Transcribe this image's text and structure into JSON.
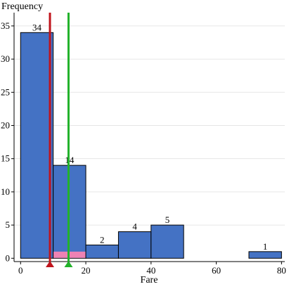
{
  "chart_data": {
    "type": "bar",
    "subtype": "histogram",
    "xlabel": "Fare",
    "ylabel": "Frequency",
    "xlim": [
      -2,
      81
    ],
    "ylim": [
      -0.5,
      37
    ],
    "x_ticks": [
      0,
      20,
      40,
      60,
      80
    ],
    "y_ticks": [
      0,
      5,
      10,
      15,
      20,
      25,
      30,
      35
    ],
    "grid": "horizontal",
    "bins": [
      {
        "start": 0,
        "end": 10,
        "count": 34,
        "label": "34"
      },
      {
        "start": 10,
        "end": 20,
        "count": 14,
        "label": "14"
      },
      {
        "start": 20,
        "end": 30,
        "count": 2,
        "label": "2"
      },
      {
        "start": 30,
        "end": 40,
        "count": 4,
        "label": "4"
      },
      {
        "start": 40,
        "end": 50,
        "count": 5,
        "label": "5"
      },
      {
        "start": 70,
        "end": 80,
        "count": 1,
        "label": "1"
      }
    ],
    "highlight": {
      "start": 10,
      "end": 20,
      "count": 1
    },
    "markers": [
      {
        "x": 9,
        "color": "#c0141c"
      },
      {
        "x": 14.7,
        "color": "#22b22a"
      }
    ],
    "colors": {
      "bar": "#4472c4",
      "bar_stroke": "#000000",
      "highlight": "#ee82b4",
      "grid": "#e6e6e6"
    }
  }
}
